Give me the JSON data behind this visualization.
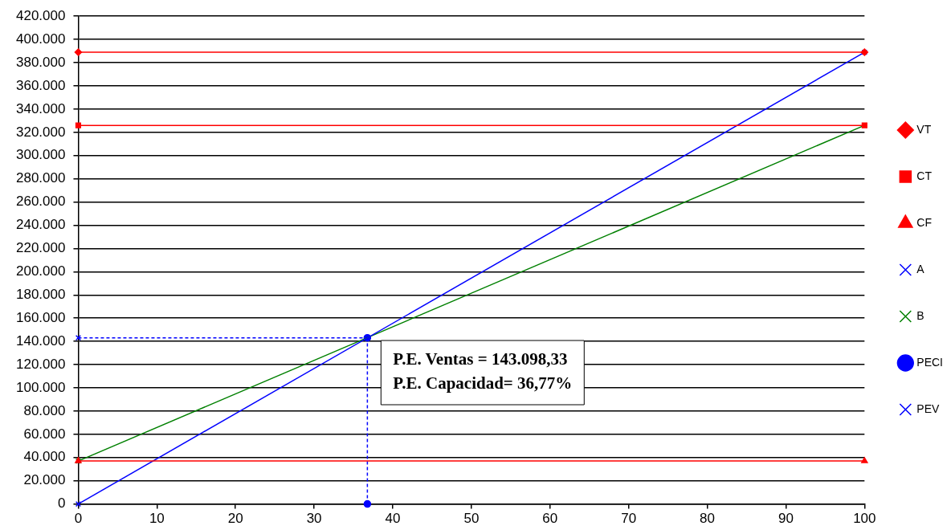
{
  "chart_data": {
    "type": "line",
    "legend": "right",
    "grid": "y",
    "line_style": "solid",
    "xlim": [
      0,
      100
    ],
    "xticks": [
      0,
      10,
      20,
      30,
      40,
      50,
      60,
      70,
      80,
      90,
      100
    ],
    "ylim": [
      0,
      420000
    ],
    "yticks": [
      {
        "value": 0,
        "label": "0"
      },
      {
        "value": 20000,
        "label": "20.000"
      },
      {
        "value": 40000,
        "label": "40.000"
      },
      {
        "value": 60000,
        "label": "60.000"
      },
      {
        "value": 80000,
        "label": "80.000"
      },
      {
        "value": 100000,
        "label": "100.000"
      },
      {
        "value": 120000,
        "label": "120.000"
      },
      {
        "value": 140000,
        "label": "140.000"
      },
      {
        "value": 160000,
        "label": "160.000"
      },
      {
        "value": 180000,
        "label": "180.000"
      },
      {
        "value": 200000,
        "label": "200.000"
      },
      {
        "value": 220000,
        "label": "220.000"
      },
      {
        "value": 240000,
        "label": "240.000"
      },
      {
        "value": 260000,
        "label": "260.000"
      },
      {
        "value": 280000,
        "label": "280.000"
      },
      {
        "value": 300000,
        "label": "300.000"
      },
      {
        "value": 320000,
        "label": "320.000"
      },
      {
        "value": 340000,
        "label": "340.000"
      },
      {
        "value": 360000,
        "label": "360.000"
      },
      {
        "value": 380000,
        "label": "380.000"
      },
      {
        "value": 400000,
        "label": "400.000"
      },
      {
        "value": 420000,
        "label": "420.000"
      }
    ],
    "series": [
      {
        "name": "VT",
        "color": "#ff0000",
        "marker": "diamond",
        "x": [
          0,
          100
        ],
        "values": [
          389000,
          389000
        ]
      },
      {
        "name": "CT",
        "color": "#ff0000",
        "marker": "square",
        "x": [
          0,
          100
        ],
        "values": [
          326000,
          326000
        ]
      },
      {
        "name": "CF",
        "color": "#ff0000",
        "marker": "triangle",
        "x": [
          0,
          100
        ],
        "values": [
          37000,
          37000
        ]
      },
      {
        "name": "A",
        "color": "#0000ff",
        "marker": "cross",
        "x": [
          0,
          100
        ],
        "values": [
          0,
          389000
        ]
      },
      {
        "name": "B",
        "color": "#008000",
        "marker": "cross",
        "x": [
          0,
          100
        ],
        "values": [
          37000,
          326000
        ]
      },
      {
        "name": "PECI",
        "color": "#0000ff",
        "line_style": "dashed",
        "marker": "circle",
        "x": [
          36.77,
          36.77
        ],
        "values": [
          0,
          143098.33
        ]
      },
      {
        "name": "PEV",
        "color": "#0000ff",
        "line_style": "dashed",
        "marker": "cross",
        "x": [
          0,
          36.77
        ],
        "values": [
          143098.33,
          143098.33
        ]
      }
    ],
    "annotations": [
      "P.E. Ventas = 143.098,33",
      "P.E. Capacidad= 36,77%"
    ]
  }
}
